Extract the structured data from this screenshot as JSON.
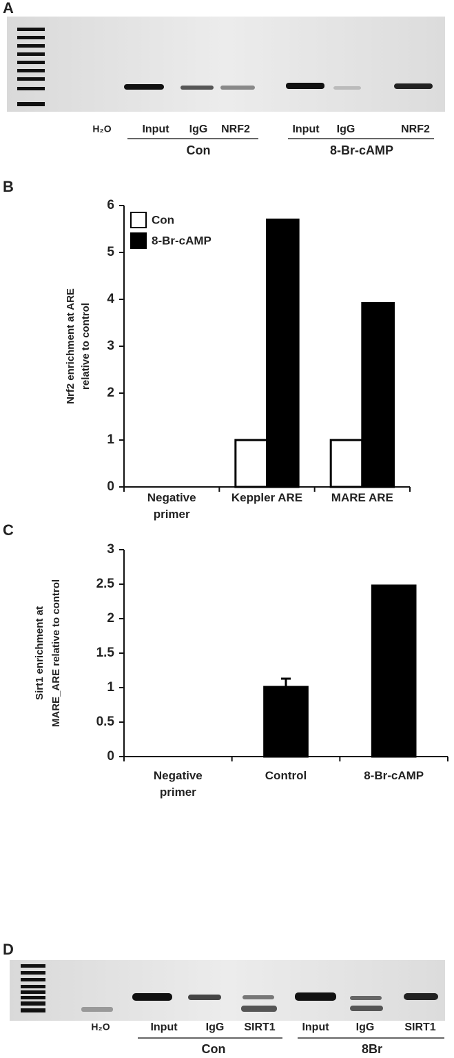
{
  "panels": {
    "a": "A",
    "b": "B",
    "c": "C",
    "d": "D"
  },
  "gel_a": {
    "lanes": [
      "H₂O",
      "Input",
      "IgG",
      "NRF2",
      "Input",
      "IgG",
      "NRF2"
    ],
    "groups": [
      "Con",
      "8-Br-cAMP"
    ]
  },
  "gel_d": {
    "lanes": [
      "H₂O",
      "Input",
      "IgG",
      "SIRT1",
      "Input",
      "IgG",
      "SIRT1"
    ],
    "groups": [
      "Con",
      "8Br"
    ]
  },
  "chart_data": [
    {
      "type": "bar",
      "ylabel": [
        "Nrf2 enrichment at ARE",
        "relative to control"
      ],
      "categories": [
        "Negative primer",
        "Keppler ARE",
        "MARE ARE"
      ],
      "series": [
        {
          "name": "Con",
          "color": "#ffffff",
          "values": [
            0,
            1,
            1
          ]
        },
        {
          "name": "8-Br-cAMP",
          "color": "#000000",
          "values": [
            0,
            5.7,
            3.92
          ]
        }
      ],
      "ylim": [
        0,
        6
      ],
      "yticks": [
        0,
        1,
        2,
        3,
        4,
        5,
        6
      ],
      "legend": "upper left"
    },
    {
      "type": "bar",
      "ylabel": [
        "Sirt1 enrichment at",
        "MARE_ARE relative to control"
      ],
      "categories": [
        "Negative primer",
        "Control",
        "8-Br-cAMP"
      ],
      "series": [
        {
          "color": "#000000",
          "values": [
            0,
            1.01,
            2.48
          ],
          "errors": [
            null,
            0.12,
            null
          ]
        }
      ],
      "ylim": [
        0,
        3
      ],
      "yticks": [
        0,
        0.5,
        1,
        1.5,
        2,
        2.5,
        3
      ]
    }
  ]
}
